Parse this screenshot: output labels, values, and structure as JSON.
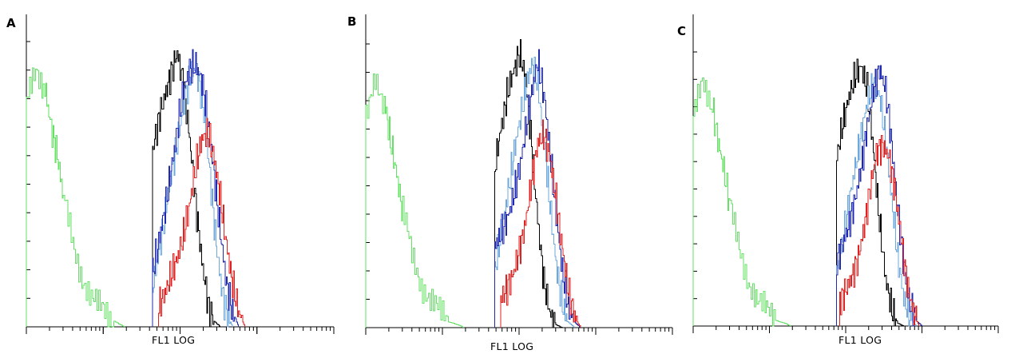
{
  "chart_data": [
    {
      "type": "line",
      "panel_label": "A",
      "xlabel": "FL1 LOG",
      "ylabel": "",
      "xscale": "log",
      "xlim": [
        0,
        100
      ],
      "ylim": [
        0,
        100
      ],
      "grid": false,
      "legend": "none",
      "series": [
        {
          "color": "#66e066",
          "x": [
            0,
            3,
            6,
            8,
            10,
            12,
            15,
            18,
            21,
            24,
            27,
            30,
            32
          ],
          "y": [
            78,
            90,
            84,
            70,
            60,
            45,
            30,
            18,
            10,
            6,
            3,
            1,
            0
          ]
        },
        {
          "color": "#000000",
          "x": [
            41,
            43,
            45,
            47,
            49,
            51,
            53,
            55,
            57,
            59,
            61,
            63
          ],
          "y": [
            62,
            73,
            81,
            89,
            96,
            85,
            66,
            43,
            23,
            8,
            2,
            0
          ]
        },
        {
          "color": "#6fa8dc",
          "x": [
            41,
            43,
            45,
            47,
            49,
            51,
            53,
            55,
            57,
            59,
            61,
            63,
            65,
            67
          ],
          "y": [
            14,
            26,
            40,
            53,
            65,
            77,
            88,
            91,
            81,
            61,
            36,
            16,
            5,
            0
          ]
        },
        {
          "color": "#1f2ab0",
          "x": [
            41,
            43,
            45,
            47,
            49,
            51,
            53,
            55,
            57,
            59,
            61,
            63,
            65,
            67,
            69
          ],
          "y": [
            19,
            30,
            41,
            55,
            69,
            83,
            90,
            92,
            86,
            72,
            53,
            33,
            15,
            5,
            0
          ]
        },
        {
          "color": "#dd2222",
          "x": [
            43,
            45,
            47,
            49,
            51,
            53,
            55,
            57,
            59,
            61,
            63,
            65,
            67,
            69,
            71
          ],
          "y": [
            7,
            12,
            18,
            24,
            32,
            43,
            56,
            66,
            68,
            59,
            45,
            29,
            15,
            5,
            0
          ]
        }
      ]
    },
    {
      "type": "line",
      "panel_label": "B",
      "xlabel": "FL1 LOG",
      "ylabel": "",
      "xscale": "log",
      "xlim": [
        0,
        100
      ],
      "ylim": [
        0,
        100
      ],
      "grid": false,
      "legend": "none",
      "series": [
        {
          "color": "#66e066",
          "x": [
            0,
            3,
            6,
            8,
            10,
            12,
            15,
            18,
            21,
            24,
            27,
            30,
            32
          ],
          "y": [
            72,
            88,
            80,
            66,
            54,
            40,
            27,
            16,
            9,
            5,
            2,
            1,
            0
          ]
        },
        {
          "color": "#000000",
          "x": [
            42,
            44,
            46,
            48,
            50,
            52,
            54,
            56,
            58,
            60,
            62,
            64
          ],
          "y": [
            57,
            70,
            82,
            90,
            97,
            88,
            64,
            38,
            16,
            5,
            1,
            0
          ]
        },
        {
          "color": "#6fa8dc",
          "x": [
            42,
            44,
            46,
            48,
            50,
            52,
            54,
            56,
            58,
            60,
            62,
            64,
            66,
            68
          ],
          "y": [
            20,
            33,
            46,
            60,
            72,
            84,
            93,
            86,
            66,
            43,
            22,
            8,
            2,
            0
          ]
        },
        {
          "color": "#1f2ab0",
          "x": [
            42,
            44,
            46,
            48,
            50,
            52,
            54,
            56,
            58,
            60,
            62,
            64,
            66,
            68,
            70
          ],
          "y": [
            29,
            33,
            38,
            46,
            56,
            69,
            83,
            94,
            82,
            62,
            40,
            20,
            7,
            2,
            0
          ]
        },
        {
          "color": "#dd2222",
          "x": [
            44,
            46,
            48,
            50,
            52,
            54,
            56,
            58,
            60,
            62,
            64,
            66,
            68,
            70
          ],
          "y": [
            10,
            14,
            19,
            27,
            37,
            52,
            65,
            68,
            60,
            45,
            28,
            13,
            4,
            0
          ]
        }
      ]
    },
    {
      "type": "line",
      "panel_label": "C",
      "xlabel": "FL1 LOG",
      "ylabel": "",
      "xscale": "log",
      "xlim": [
        0,
        100
      ],
      "ylim": [
        0,
        100
      ],
      "grid": false,
      "legend": "none",
      "series": [
        {
          "color": "#66e066",
          "x": [
            0,
            3,
            6,
            8,
            10,
            12,
            15,
            18,
            21,
            24,
            27,
            30,
            32
          ],
          "y": [
            75,
            90,
            82,
            68,
            57,
            43,
            29,
            17,
            9,
            5,
            2,
            1,
            0
          ]
        },
        {
          "color": "#000000",
          "x": [
            47,
            49,
            51,
            53,
            55,
            57,
            59,
            61,
            63,
            65,
            67,
            69
          ],
          "y": [
            62,
            74,
            84,
            91,
            95,
            86,
            64,
            38,
            17,
            6,
            1,
            0
          ]
        },
        {
          "color": "#6fa8dc",
          "x": [
            47,
            49,
            51,
            53,
            55,
            57,
            59,
            61,
            63,
            65,
            67,
            69,
            71,
            73
          ],
          "y": [
            20,
            32,
            45,
            58,
            70,
            82,
            88,
            84,
            68,
            46,
            25,
            10,
            3,
            0
          ]
        },
        {
          "color": "#1f2ab0",
          "x": [
            47,
            49,
            51,
            53,
            55,
            57,
            59,
            61,
            63,
            65,
            67,
            69,
            71,
            73,
            75
          ],
          "y": [
            24,
            30,
            37,
            46,
            58,
            73,
            86,
            94,
            86,
            66,
            42,
            21,
            8,
            2,
            0
          ]
        },
        {
          "color": "#dd2222",
          "x": [
            48,
            50,
            52,
            54,
            56,
            58,
            60,
            62,
            64,
            66,
            68,
            70,
            72,
            74
          ],
          "y": [
            9,
            13,
            18,
            25,
            36,
            51,
            63,
            66,
            62,
            50,
            33,
            16,
            5,
            0
          ]
        }
      ]
    }
  ]
}
